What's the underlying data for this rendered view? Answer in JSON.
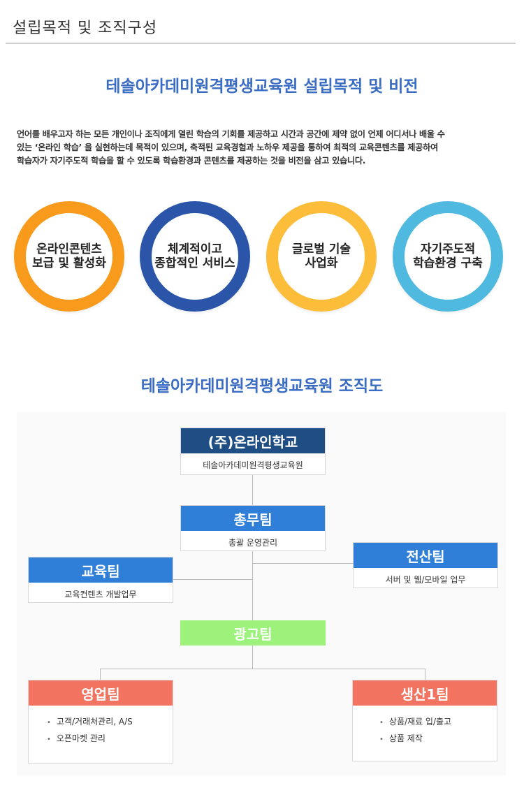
{
  "header": {
    "title": "설립목적 및 조직구성"
  },
  "purpose": {
    "title": "테솔아카데미원격평생교육원 설립목적 및 비전",
    "lines": [
      "언어를 배우고자 하는 모든 개인이나 조직에게 열린 학습의 기회를 제공하고 시간과 공간에 제약 없이 언제 어디서나 배울 수",
      "있는 ‘온라인 학습’ 을 실현하는데 목적이 있으며, 축적된 교육경험과 노하우 제공을 통하여 최적의 교육콘텐츠를 제공하여",
      "학습자가 자기주도적 학습을 할 수 있도록 학습환경과 콘텐츠를 제공하는 것을 비전을 삼고 있습니다."
    ]
  },
  "vision": [
    {
      "label": "온라인콘텐츠\n보급 및 활성화",
      "color": "#f89a1c"
    },
    {
      "label": "체계적이고\n종합적인 서비스",
      "color": "#2a55a8"
    },
    {
      "label": "글로벌 기술\n사업화",
      "color": "#fcbd3a"
    },
    {
      "label": "자기주도적\n학습환경 구축",
      "color": "#4fb9e0"
    }
  ],
  "org": {
    "title": "테솔아카데미원격평생교육원 조직도",
    "colors": {
      "navy": "#1f4e85",
      "blue": "#2f7ed8",
      "green": "#9cf27a",
      "coral": "#f2735f"
    },
    "top": {
      "name": "(주)온라인학교",
      "sub": "테솔아카데미원격평생교육원"
    },
    "general": {
      "name": "총무팀",
      "desc": "총괄 운영관리"
    },
    "it": {
      "name": "전산팀",
      "desc": "서버 및 웹/모바일 업무"
    },
    "edu": {
      "name": "교육팀",
      "desc": "교육컨텐츠 개발업무"
    },
    "ad": {
      "name": "광고팀"
    },
    "sales": {
      "name": "영업팀",
      "items": [
        "고객/거래처관리, A/S",
        "오픈마켓 관리"
      ]
    },
    "prod": {
      "name": "생산1팀",
      "items": [
        "상품/재료 입/출고",
        "상품 제작"
      ]
    }
  }
}
